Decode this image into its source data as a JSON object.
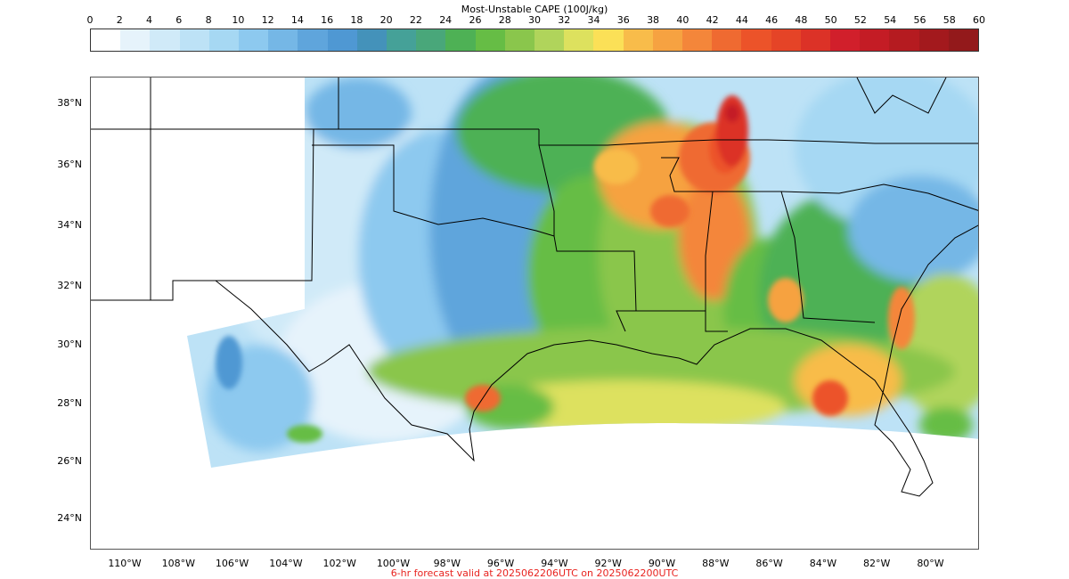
{
  "colorbar": {
    "title": "Most-Unstable CAPE (100J/kg)",
    "ticks": [
      "0",
      "2",
      "4",
      "6",
      "8",
      "10",
      "12",
      "14",
      "16",
      "18",
      "20",
      "22",
      "24",
      "26",
      "28",
      "30",
      "32",
      "34",
      "36",
      "38",
      "40",
      "42",
      "44",
      "46",
      "48",
      "50",
      "52",
      "54",
      "56",
      "58",
      "60"
    ],
    "colors": [
      "#ffffff",
      "#e6f3fb",
      "#d0eaf8",
      "#bde2f6",
      "#a6d8f3",
      "#8dc9ef",
      "#75b7e6",
      "#5fa5dc",
      "#4f98d3",
      "#4492ba",
      "#45a198",
      "#49a77a",
      "#4eb155",
      "#66bd45",
      "#8ac64c",
      "#b0d45b",
      "#dde15e",
      "#fbe057",
      "#f8bc4a",
      "#f6a241",
      "#f4863a",
      "#ef6a31",
      "#ec5329",
      "#e54427",
      "#dc3227",
      "#d11f2b",
      "#c41c25",
      "#b51b20",
      "#a3191d",
      "#93191b"
    ]
  },
  "map": {
    "lat_labels": [
      "38°N",
      "36°N",
      "34°N",
      "32°N",
      "30°N",
      "28°N",
      "26°N",
      "24°N"
    ],
    "lon_labels": [
      "110°W",
      "108°W",
      "106°W",
      "104°W",
      "102°W",
      "100°W",
      "98°W",
      "96°W",
      "94°W",
      "92°W",
      "90°W",
      "88°W",
      "86°W",
      "84°W",
      "82°W",
      "80°W"
    ]
  },
  "footer": "6-hr forecast valid at 2025062206UTC on 2025062200UTC"
}
